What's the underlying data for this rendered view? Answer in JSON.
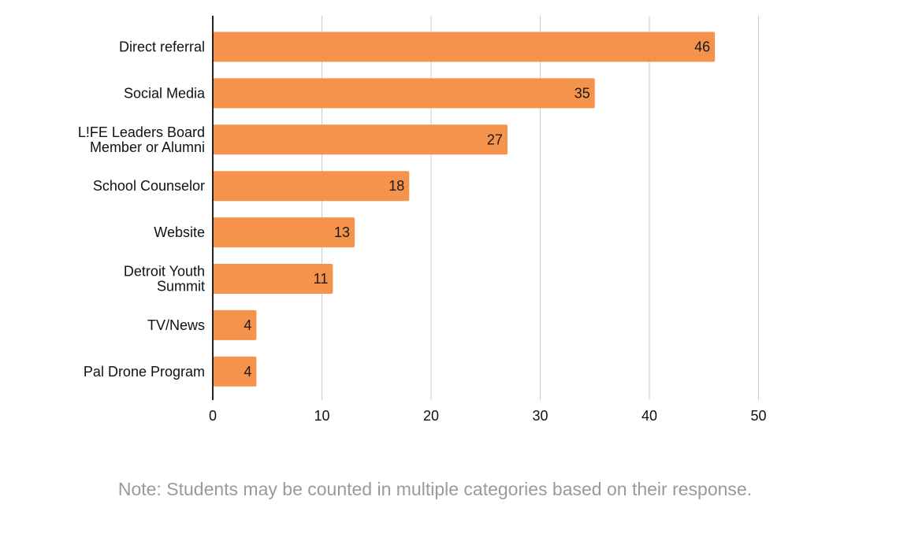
{
  "chart_data": {
    "type": "bar",
    "orientation": "horizontal",
    "categories": [
      [
        "Direct referral"
      ],
      [
        "Social Media"
      ],
      [
        "L!FE Leaders Board",
        "Member or Alumni"
      ],
      [
        "School Counselor"
      ],
      [
        "Website"
      ],
      [
        "Detroit Youth",
        "Summit"
      ],
      [
        "TV/News"
      ],
      [
        "Pal Drone Program"
      ]
    ],
    "values": [
      46,
      35,
      27,
      18,
      13,
      11,
      4,
      4
    ],
    "xlim": [
      0,
      50
    ],
    "xticks": [
      0,
      10,
      20,
      30,
      40,
      50
    ],
    "grid": "vertical",
    "data_labels": true,
    "bar_color": "#f5924b",
    "grid_color": "#cccccc",
    "axis_color": "#222222"
  },
  "note": "Note: Students may be counted in multiple categories based on their response."
}
